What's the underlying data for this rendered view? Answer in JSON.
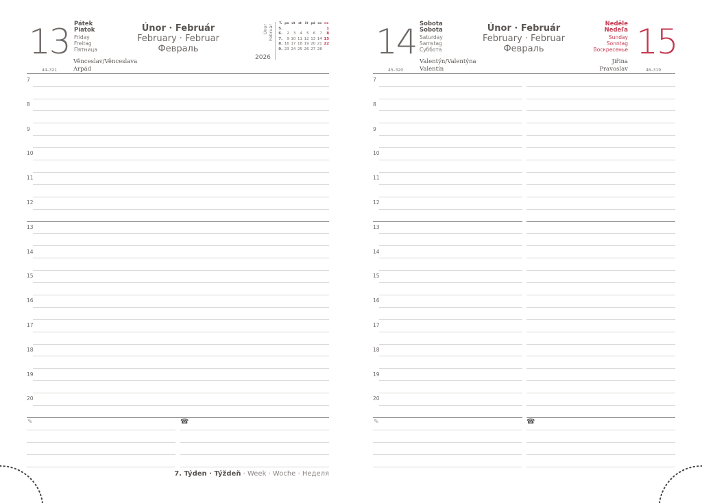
{
  "month": {
    "line1": "Únor · Február",
    "line2": "February · Februar",
    "line3": "Февраль"
  },
  "left": {
    "day": "13",
    "weekdays": [
      "Pátek",
      "Piatok",
      "Friday",
      "Freitag",
      "Пятница"
    ],
    "names": [
      "Věnceslav/Věnceslava",
      "Arpád"
    ],
    "day_count": "44–321"
  },
  "right_a": {
    "day": "14",
    "weekdays": [
      "Sobota",
      "Sobota",
      "Saturday",
      "Samstag",
      "Суббота"
    ],
    "names": [
      "Valentýn/Valentýna",
      "Valentín"
    ],
    "day_count": "45–320"
  },
  "right_b": {
    "day": "15",
    "weekdays": [
      "Neděle",
      "Nedeľa",
      "Sunday",
      "Sonntag",
      "Воскресенье"
    ],
    "names": [
      "Jiřina",
      "Pravoslav"
    ],
    "day_count": "46–319"
  },
  "mini_calendar": {
    "label_cz": "Únor",
    "label_sk": "Február",
    "year": "2026",
    "headers": [
      "T.",
      "po",
      "út",
      "st",
      "čt",
      "pá",
      "so",
      "ne"
    ],
    "rows": [
      [
        "5.",
        "",
        "",
        "",
        "",
        "",
        "",
        "1"
      ],
      [
        "6.",
        "2",
        "3",
        "4",
        "5",
        "6",
        "7",
        "8"
      ],
      [
        "7.",
        "9",
        "10",
        "11",
        "12",
        "13",
        "14",
        "15"
      ],
      [
        "8.",
        "16",
        "17",
        "18",
        "19",
        "20",
        "21",
        "22"
      ],
      [
        "9.",
        "23",
        "24",
        "25",
        "26",
        "27",
        "28",
        ""
      ]
    ]
  },
  "hours": [
    "7",
    "8",
    "9",
    "10",
    "11",
    "12",
    "13",
    "14",
    "15",
    "16",
    "17",
    "18",
    "19",
    "20"
  ],
  "notes": {
    "pencil_icon": "pencil-icon",
    "phone_icon": "phone-icon"
  },
  "week": {
    "bold": "7. Týden · Týždeň",
    "rest": " · Week · Woche · Неделя"
  },
  "colors": {
    "text": "#6d6865",
    "accent_sunday": "#c4384f",
    "rule": "#d8d6d4"
  }
}
